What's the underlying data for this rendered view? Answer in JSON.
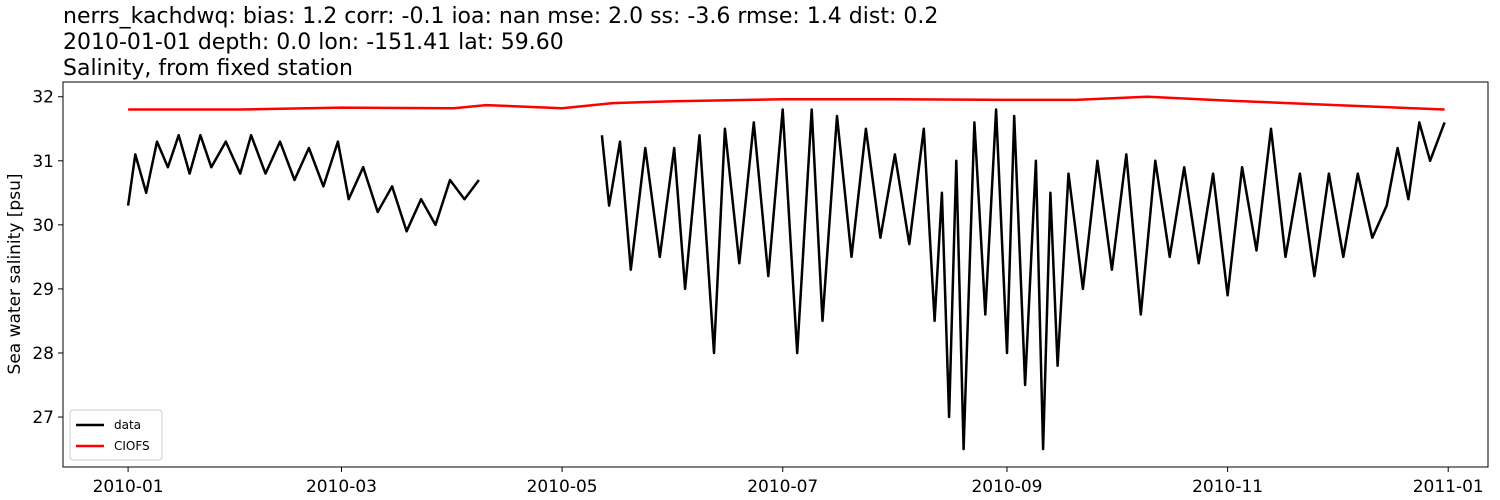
{
  "chart_data": {
    "type": "line",
    "title": "nerrs_kachdwq: bias: 1.2  corr: -0.1  ioa: nan  mse: 2.0  ss: -3.6  rmse: 1.4  dist: 0.2",
    "subtitle": "2010-01-01 depth: 0.0 lon: -151.41 lat: 59.60",
    "subtitle2": "Salinity, from fixed station",
    "y_label": "Sea water salinity [psu]",
    "xlim": [
      "2009-12-14",
      "2011-01-12"
    ],
    "xticks": [
      {
        "value": "2010-01-01",
        "label": "2010-01"
      },
      {
        "value": "2010-03-01",
        "label": "2010-03"
      },
      {
        "value": "2010-05-01",
        "label": "2010-05"
      },
      {
        "value": "2010-07-01",
        "label": "2010-07"
      },
      {
        "value": "2010-09-01",
        "label": "2010-09"
      },
      {
        "value": "2010-11-01",
        "label": "2010-11"
      },
      {
        "value": "2011-01-01",
        "label": "2011-01"
      }
    ],
    "ylim": [
      26.22,
      32.23
    ],
    "yticks": [
      27,
      28,
      29,
      30,
      31,
      32
    ],
    "legend": "lower left",
    "grid": false,
    "series": [
      {
        "name": "data",
        "color": "#000000",
        "x": [
          "2010-01-01",
          "2010-01-03",
          "2010-01-06",
          "2010-01-09",
          "2010-01-12",
          "2010-01-15",
          "2010-01-18",
          "2010-01-21",
          "2010-01-24",
          "2010-01-28",
          "2010-02-01",
          "2010-02-04",
          "2010-02-08",
          "2010-02-12",
          "2010-02-16",
          "2010-02-20",
          "2010-02-24",
          "2010-02-28",
          "2010-03-03",
          "2010-03-07",
          "2010-03-11",
          "2010-03-15",
          "2010-03-19",
          "2010-03-23",
          "2010-03-27",
          "2010-03-31",
          "2010-04-04",
          "2010-04-08",
          "2010-04-20",
          "2010-05-12",
          "2010-05-14",
          "2010-05-17",
          "2010-05-20",
          "2010-05-24",
          "2010-05-28",
          "2010-06-01",
          "2010-06-04",
          "2010-06-08",
          "2010-06-12",
          "2010-06-15",
          "2010-06-19",
          "2010-06-23",
          "2010-06-27",
          "2010-07-01",
          "2010-07-05",
          "2010-07-09",
          "2010-07-12",
          "2010-07-16",
          "2010-07-20",
          "2010-07-24",
          "2010-07-28",
          "2010-08-01",
          "2010-08-05",
          "2010-08-09",
          "2010-08-12",
          "2010-08-14",
          "2010-08-16",
          "2010-08-18",
          "2010-08-20",
          "2010-08-23",
          "2010-08-26",
          "2010-08-29",
          "2010-09-01",
          "2010-09-03",
          "2010-09-06",
          "2010-09-09",
          "2010-09-11",
          "2010-09-13",
          "2010-09-15",
          "2010-09-18",
          "2010-09-22",
          "2010-09-26",
          "2010-09-30",
          "2010-10-04",
          "2010-10-08",
          "2010-10-12",
          "2010-10-16",
          "2010-10-20",
          "2010-10-24",
          "2010-10-28",
          "2010-11-01",
          "2010-11-05",
          "2010-11-09",
          "2010-11-13",
          "2010-11-17",
          "2010-11-21",
          "2010-11-25",
          "2010-11-29",
          "2010-12-03",
          "2010-12-07",
          "2010-12-11",
          "2010-12-15",
          "2010-12-18",
          "2010-12-21",
          "2010-12-24",
          "2010-12-27",
          "2010-12-31"
        ],
        "values": [
          30.3,
          31.1,
          30.5,
          31.3,
          30.9,
          31.4,
          30.8,
          31.4,
          30.9,
          31.3,
          30.8,
          31.4,
          30.8,
          31.3,
          30.7,
          31.2,
          30.6,
          31.3,
          30.4,
          30.9,
          30.2,
          30.6,
          29.9,
          30.4,
          30.0,
          30.7,
          30.4,
          30.7,
          null,
          31.4,
          30.3,
          31.3,
          29.3,
          31.2,
          29.5,
          31.2,
          29.0,
          31.4,
          28.0,
          31.5,
          29.4,
          31.6,
          29.2,
          31.8,
          28.0,
          31.8,
          28.5,
          31.7,
          29.5,
          31.5,
          29.8,
          31.1,
          29.7,
          31.5,
          28.5,
          30.5,
          27.0,
          31.0,
          26.5,
          31.6,
          28.6,
          31.8,
          28.0,
          31.7,
          27.5,
          31.0,
          26.5,
          30.5,
          27.8,
          30.8,
          29.0,
          31.0,
          29.3,
          31.1,
          28.6,
          31.0,
          29.5,
          30.9,
          29.4,
          30.8,
          28.9,
          30.9,
          29.6,
          31.5,
          29.5,
          30.8,
          29.2,
          30.8,
          29.5,
          30.8,
          29.8,
          30.3,
          31.2,
          30.4,
          31.6,
          31.0,
          31.6
        ]
      },
      {
        "name": "CIOFS",
        "color": "#ff0000",
        "x": [
          "2010-01-01",
          "2010-02-01",
          "2010-03-01",
          "2010-04-01",
          "2010-04-10",
          "2010-05-01",
          "2010-05-15",
          "2010-06-01",
          "2010-07-01",
          "2010-08-01",
          "2010-09-01",
          "2010-09-20",
          "2010-10-10",
          "2010-11-01",
          "2010-12-01",
          "2010-12-31"
        ],
        "values": [
          31.8,
          31.8,
          31.83,
          31.82,
          31.87,
          31.82,
          31.9,
          31.93,
          31.96,
          31.96,
          31.95,
          31.95,
          32.0,
          31.94,
          31.87,
          31.8
        ]
      }
    ]
  }
}
